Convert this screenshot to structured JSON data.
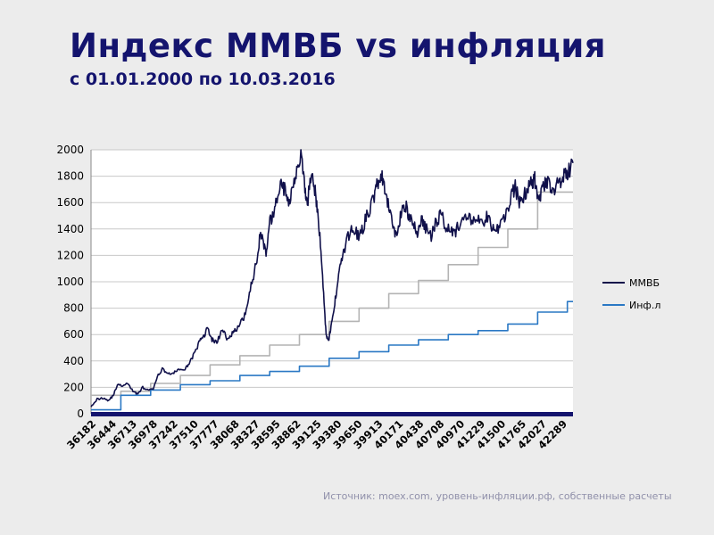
{
  "header": {
    "title": "Индекс ММВБ vs инфляция",
    "subtitle": "с 01.01.2000 по 10.03.2016"
  },
  "footer": {
    "source": "Источник: moex.com, уровень-инфляции.рф, собственные расчеты"
  },
  "colors": {
    "micex": "#10104a",
    "inflation_blue": "#2a78c4",
    "inflation_grey": "#b4b4b4",
    "grid": "#c8c8c8",
    "axis_band": "#14146e"
  },
  "chart_data": {
    "type": "line",
    "title": "",
    "xlabel": "",
    "ylabel": "",
    "ylim": [
      0,
      2000
    ],
    "yticks": [
      0,
      200,
      400,
      600,
      800,
      1000,
      1200,
      1400,
      1600,
      1800,
      2000
    ],
    "xlim": [
      36526,
      42439
    ],
    "xticks": [
      "36182",
      "36444",
      "36713",
      "36978",
      "37242",
      "37510",
      "37777",
      "38068",
      "38327",
      "38595",
      "38862",
      "39125",
      "39380",
      "39650",
      "39913",
      "40171",
      "40438",
      "40708",
      "40970",
      "41229",
      "41500",
      "41765",
      "42027",
      "42289"
    ],
    "grid": "horizontal",
    "legend_position": "right",
    "series": [
      {
        "name": "ММВБ",
        "color": "#10104a",
        "points": [
          [
            36526,
            60
          ],
          [
            36600,
            110
          ],
          [
            36680,
            120
          ],
          [
            36740,
            100
          ],
          [
            36800,
            140
          ],
          [
            36850,
            220
          ],
          [
            36920,
            210
          ],
          [
            36980,
            230
          ],
          [
            37040,
            170
          ],
          [
            37100,
            150
          ],
          [
            37160,
            200
          ],
          [
            37230,
            175
          ],
          [
            37290,
            190
          ],
          [
            37350,
            290
          ],
          [
            37400,
            340
          ],
          [
            37460,
            310
          ],
          [
            37530,
            300
          ],
          [
            37600,
            340
          ],
          [
            37680,
            330
          ],
          [
            37740,
            400
          ],
          [
            37800,
            460
          ],
          [
            37860,
            550
          ],
          [
            37910,
            590
          ],
          [
            37960,
            650
          ],
          [
            38010,
            560
          ],
          [
            38070,
            540
          ],
          [
            38130,
            630
          ],
          [
            38190,
            580
          ],
          [
            38250,
            600
          ],
          [
            38300,
            630
          ],
          [
            38380,
            700
          ],
          [
            38440,
            800
          ],
          [
            38500,
            1000
          ],
          [
            38560,
            1150
          ],
          [
            38600,
            1380
          ],
          [
            38640,
            1300
          ],
          [
            38680,
            1200
          ],
          [
            38720,
            1450
          ],
          [
            38760,
            1500
          ],
          [
            38800,
            1600
          ],
          [
            38850,
            1750
          ],
          [
            38900,
            1700
          ],
          [
            38950,
            1580
          ],
          [
            39000,
            1750
          ],
          [
            39050,
            1850
          ],
          [
            39100,
            1960
          ],
          [
            39150,
            1700
          ],
          [
            39180,
            1580
          ],
          [
            39230,
            1850
          ],
          [
            39270,
            1700
          ],
          [
            39300,
            1550
          ],
          [
            39340,
            1300
          ],
          [
            39380,
            900
          ],
          [
            39410,
            600
          ],
          [
            39440,
            560
          ],
          [
            39470,
            650
          ],
          [
            39510,
            800
          ],
          [
            39550,
            1000
          ],
          [
            39590,
            1150
          ],
          [
            39640,
            1250
          ],
          [
            39700,
            1380
          ],
          [
            39760,
            1400
          ],
          [
            39820,
            1330
          ],
          [
            39880,
            1450
          ],
          [
            39940,
            1540
          ],
          [
            40000,
            1650
          ],
          [
            40040,
            1750
          ],
          [
            40090,
            1800
          ],
          [
            40130,
            1680
          ],
          [
            40180,
            1560
          ],
          [
            40230,
            1420
          ],
          [
            40280,
            1350
          ],
          [
            40330,
            1520
          ],
          [
            40380,
            1600
          ],
          [
            40420,
            1500
          ],
          [
            40480,
            1430
          ],
          [
            40530,
            1370
          ],
          [
            40580,
            1480
          ],
          [
            40630,
            1400
          ],
          [
            40700,
            1350
          ],
          [
            40760,
            1450
          ],
          [
            40820,
            1520
          ],
          [
            40880,
            1420
          ],
          [
            40940,
            1400
          ],
          [
            41000,
            1380
          ],
          [
            41060,
            1450
          ],
          [
            41130,
            1470
          ],
          [
            41200,
            1480
          ],
          [
            41260,
            1470
          ],
          [
            41320,
            1430
          ],
          [
            41380,
            1500
          ],
          [
            41440,
            1420
          ],
          [
            41500,
            1380
          ],
          [
            41560,
            1450
          ],
          [
            41620,
            1520
          ],
          [
            41680,
            1650
          ],
          [
            41730,
            1720
          ],
          [
            41780,
            1600
          ],
          [
            41830,
            1650
          ],
          [
            41880,
            1690
          ],
          [
            41930,
            1760
          ],
          [
            41970,
            1780
          ],
          [
            42000,
            1680
          ],
          [
            42040,
            1650
          ],
          [
            42080,
            1720
          ],
          [
            42130,
            1750
          ],
          [
            42180,
            1690
          ],
          [
            42230,
            1720
          ],
          [
            42280,
            1760
          ],
          [
            42330,
            1800
          ],
          [
            42380,
            1830
          ],
          [
            42439,
            1900
          ]
        ]
      },
      {
        "name": "Инф.л",
        "color": "#2a78c4",
        "points": [
          [
            36526,
            30
          ],
          [
            36892,
            30
          ],
          [
            36892,
            140
          ],
          [
            37257,
            140
          ],
          [
            37257,
            180
          ],
          [
            37622,
            180
          ],
          [
            37622,
            220
          ],
          [
            37987,
            220
          ],
          [
            37987,
            250
          ],
          [
            38353,
            250
          ],
          [
            38353,
            290
          ],
          [
            38718,
            290
          ],
          [
            38718,
            320
          ],
          [
            39083,
            320
          ],
          [
            39083,
            360
          ],
          [
            39448,
            360
          ],
          [
            39448,
            420
          ],
          [
            39814,
            420
          ],
          [
            39814,
            470
          ],
          [
            40179,
            470
          ],
          [
            40179,
            520
          ],
          [
            40544,
            520
          ],
          [
            40544,
            560
          ],
          [
            40909,
            560
          ],
          [
            40909,
            600
          ],
          [
            41275,
            600
          ],
          [
            41275,
            630
          ],
          [
            41640,
            630
          ],
          [
            41640,
            680
          ],
          [
            42005,
            680
          ],
          [
            42005,
            770
          ],
          [
            42370,
            770
          ],
          [
            42370,
            850
          ],
          [
            42439,
            850
          ]
        ]
      },
      {
        "points": [
          [
            36526,
            140
          ],
          [
            36892,
            140
          ],
          [
            36892,
            170
          ],
          [
            37257,
            170
          ],
          [
            37257,
            230
          ],
          [
            37622,
            230
          ],
          [
            37622,
            290
          ],
          [
            37987,
            290
          ],
          [
            37987,
            370
          ],
          [
            38353,
            370
          ],
          [
            38353,
            440
          ],
          [
            38718,
            440
          ],
          [
            38718,
            520
          ],
          [
            39083,
            520
          ],
          [
            39083,
            600
          ],
          [
            39448,
            600
          ],
          [
            39448,
            700
          ],
          [
            39814,
            700
          ],
          [
            39814,
            800
          ],
          [
            40179,
            800
          ],
          [
            40179,
            910
          ],
          [
            40544,
            910
          ],
          [
            40544,
            1010
          ],
          [
            40909,
            1010
          ],
          [
            40909,
            1130
          ],
          [
            41275,
            1130
          ],
          [
            41275,
            1260
          ],
          [
            41640,
            1260
          ],
          [
            41640,
            1400
          ],
          [
            42005,
            1400
          ],
          [
            42005,
            1680
          ],
          [
            42439,
            1680
          ]
        ]
      }
    ]
  }
}
